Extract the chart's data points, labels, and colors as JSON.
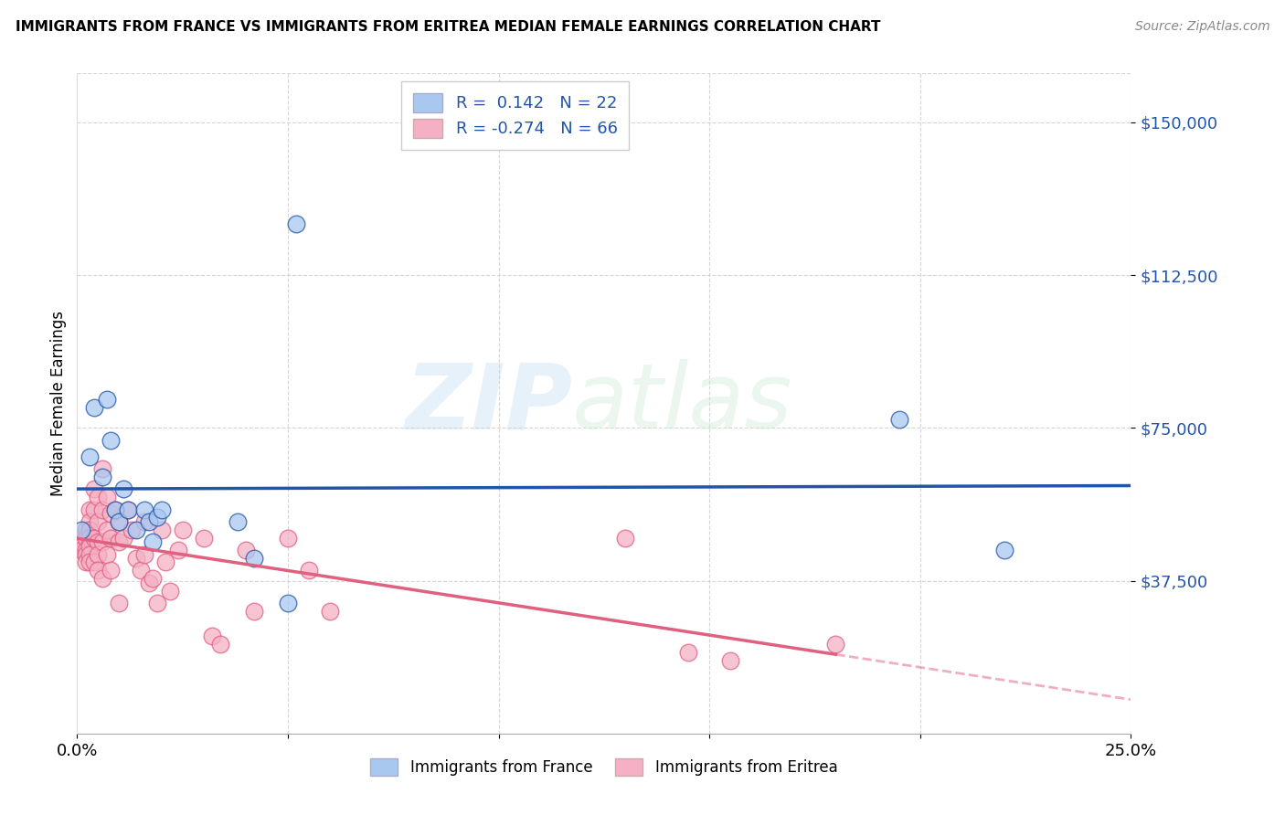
{
  "title": "IMMIGRANTS FROM FRANCE VS IMMIGRANTS FROM ERITREA MEDIAN FEMALE EARNINGS CORRELATION CHART",
  "source": "Source: ZipAtlas.com",
  "ylabel": "Median Female Earnings",
  "ytick_labels": [
    "$37,500",
    "$75,000",
    "$112,500",
    "$150,000"
  ],
  "ytick_values": [
    37500,
    75000,
    112500,
    150000
  ],
  "ymin": 0,
  "ymax": 162000,
  "xmin": 0.0,
  "xmax": 0.25,
  "watermark_zip": "ZIP",
  "watermark_atlas": "atlas",
  "legend_france_r": "R =  0.142",
  "legend_france_n": "N = 22",
  "legend_eritrea_r": "R = -0.274",
  "legend_eritrea_n": "N = 66",
  "france_color": "#A8C8F0",
  "eritrea_color": "#F5B0C5",
  "france_line_color": "#2255AA",
  "eritrea_line_color": "#E06080",
  "france_points_x": [
    0.001,
    0.003,
    0.004,
    0.006,
    0.007,
    0.008,
    0.009,
    0.01,
    0.011,
    0.012,
    0.014,
    0.016,
    0.017,
    0.018,
    0.019,
    0.02,
    0.038,
    0.042,
    0.05,
    0.052,
    0.195,
    0.22
  ],
  "france_points_y": [
    50000,
    68000,
    80000,
    63000,
    82000,
    72000,
    55000,
    52000,
    60000,
    55000,
    50000,
    55000,
    52000,
    47000,
    53000,
    55000,
    52000,
    43000,
    32000,
    125000,
    77000,
    45000
  ],
  "eritrea_points_x": [
    0.001,
    0.001,
    0.001,
    0.001,
    0.002,
    0.002,
    0.002,
    0.002,
    0.002,
    0.003,
    0.003,
    0.003,
    0.003,
    0.003,
    0.003,
    0.003,
    0.004,
    0.004,
    0.004,
    0.004,
    0.005,
    0.005,
    0.005,
    0.005,
    0.005,
    0.006,
    0.006,
    0.006,
    0.006,
    0.007,
    0.007,
    0.007,
    0.008,
    0.008,
    0.008,
    0.009,
    0.01,
    0.01,
    0.01,
    0.011,
    0.012,
    0.013,
    0.014,
    0.015,
    0.016,
    0.016,
    0.017,
    0.018,
    0.019,
    0.02,
    0.021,
    0.022,
    0.024,
    0.025,
    0.03,
    0.032,
    0.034,
    0.04,
    0.042,
    0.05,
    0.055,
    0.06,
    0.13,
    0.145,
    0.155,
    0.18
  ],
  "eritrea_points_y": [
    48000,
    47000,
    46000,
    45000,
    50000,
    48000,
    45000,
    44000,
    42000,
    55000,
    52000,
    50000,
    48000,
    46000,
    44000,
    42000,
    60000,
    55000,
    48000,
    42000,
    58000,
    52000,
    47000,
    44000,
    40000,
    65000,
    55000,
    47000,
    38000,
    58000,
    50000,
    44000,
    54000,
    48000,
    40000,
    55000,
    52000,
    47000,
    32000,
    48000,
    55000,
    50000,
    43000,
    40000,
    52000,
    44000,
    37000,
    38000,
    32000,
    50000,
    42000,
    35000,
    45000,
    50000,
    48000,
    24000,
    22000,
    45000,
    30000,
    48000,
    40000,
    30000,
    48000,
    20000,
    18000,
    22000
  ],
  "background_color": "#FFFFFF",
  "grid_color": "#CCCCCC"
}
